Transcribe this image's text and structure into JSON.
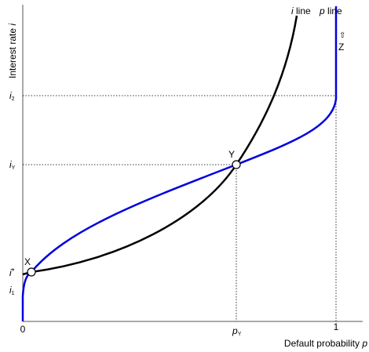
{
  "axes": {
    "y_label": "Interest rate ",
    "y_var": "i",
    "x_label": "Default probability ",
    "x_var": "p"
  },
  "curves": {
    "i_line": {
      "var": "i",
      "label": " line"
    },
    "p_line": {
      "var": "p",
      "label": " line"
    }
  },
  "shift": {
    "arrow": "⇧",
    "label": "Z"
  },
  "y_ticks": [
    {
      "base": "i",
      "sub": "2"
    },
    {
      "base": "i",
      "sub": "Y"
    },
    {
      "base": "i",
      "sub": "*"
    },
    {
      "base": "i",
      "sub": "1"
    }
  ],
  "x_ticks": [
    {
      "base": "0"
    },
    {
      "base": "p",
      "sub": "Y"
    },
    {
      "base": "1"
    }
  ],
  "points": [
    {
      "label": "X"
    },
    {
      "label": "Y"
    }
  ]
}
